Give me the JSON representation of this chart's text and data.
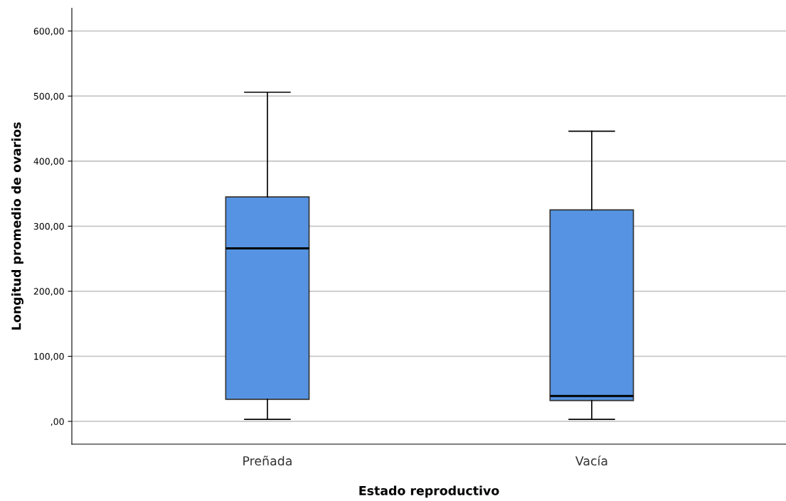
{
  "chart_data": {
    "type": "box",
    "xlabel": "Estado reproductivo",
    "ylabel": "Longitud promedio de ovarios",
    "categories": [
      "Preñada",
      "Vacía"
    ],
    "boxes": [
      {
        "low": 3,
        "q1": 34,
        "median": 266,
        "q3": 345,
        "high": 506
      },
      {
        "low": 3,
        "q1": 32,
        "median": 39,
        "q3": 325,
        "high": 446
      }
    ],
    "color": "#5694e3",
    "ylim": [
      -35,
      635
    ],
    "yticks": [
      {
        "value": 0,
        "label": ",00"
      },
      {
        "value": 100,
        "label": "100,00"
      },
      {
        "value": 200,
        "label": "200,00"
      },
      {
        "value": 300,
        "label": "300,00"
      },
      {
        "value": 400,
        "label": "400,00"
      },
      {
        "value": 500,
        "label": "500,00"
      },
      {
        "value": 600,
        "label": "600,00"
      }
    ],
    "grid": "y"
  }
}
